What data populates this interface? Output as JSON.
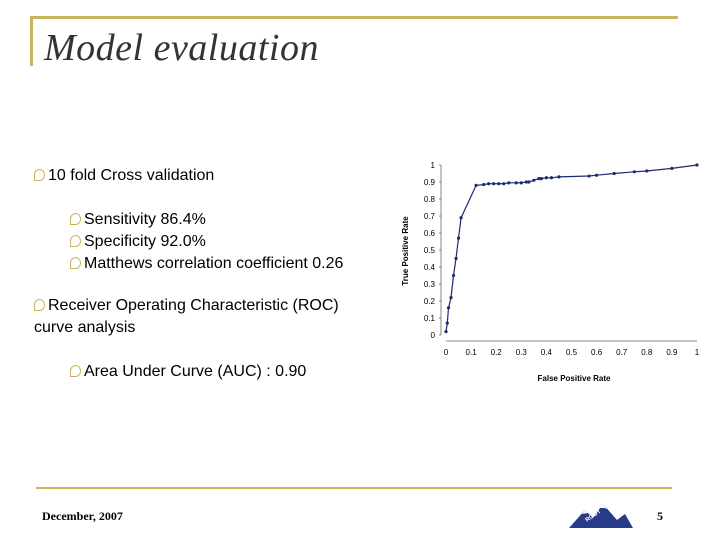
{
  "slide": {
    "title": "Model evaluation",
    "bullets": [
      {
        "text": "10 fold Cross validation",
        "level": 1
      },
      {
        "text": "Sensitivity 86.4%",
        "level": 2
      },
      {
        "text": "Specificity 92.0%",
        "level": 2
      },
      {
        "text": "Matthews correlation coefficient 0.26",
        "level": 2
      },
      {
        "text": "Receiver Operating Characteristic (ROC)",
        "level": 1
      },
      {
        "text": "curve analysis",
        "level": 1
      },
      {
        "text": "Area Under Curve (AUC) : 0.90",
        "level": 2
      }
    ],
    "footer_date": "December, 2007",
    "page_number": "5",
    "accent_color": "#c8b45a",
    "logo_icon": "mountain-logo-icon"
  },
  "chart_data": {
    "type": "line",
    "xlabel": "False Positive Rate",
    "ylabel": "True Positive Rate",
    "xlim": [
      0,
      1
    ],
    "ylim": [
      0,
      1
    ],
    "x_ticks": [
      "0",
      "0.1",
      "0.2",
      "0.3",
      "0.4",
      "0.5",
      "0.6",
      "0.7",
      "0.8",
      "0.9",
      "1"
    ],
    "y_ticks": [
      "0",
      "0.1",
      "0.2",
      "0.3",
      "0.4",
      "0.5",
      "0.6",
      "0.7",
      "0.8",
      "0.9",
      "1"
    ],
    "grid": false,
    "series_color": "#1f2a6e",
    "series": [
      {
        "x": [
          0,
          0.005,
          0.01,
          0.02,
          0.03,
          0.04,
          0.05,
          0.06,
          0.12,
          0.15,
          0.17,
          0.19,
          0.21,
          0.23,
          0.25,
          0.28,
          0.3,
          0.32,
          0.33,
          0.35,
          0.37,
          0.38,
          0.4,
          0.42,
          0.45,
          0.57,
          0.6,
          0.67,
          0.75,
          0.8,
          0.9,
          1.0
        ],
        "y": [
          0.02,
          0.07,
          0.16,
          0.22,
          0.35,
          0.45,
          0.57,
          0.69,
          0.88,
          0.885,
          0.89,
          0.89,
          0.89,
          0.89,
          0.895,
          0.895,
          0.895,
          0.9,
          0.9,
          0.91,
          0.92,
          0.92,
          0.925,
          0.925,
          0.93,
          0.935,
          0.94,
          0.95,
          0.96,
          0.965,
          0.98,
          1.0
        ]
      }
    ]
  }
}
